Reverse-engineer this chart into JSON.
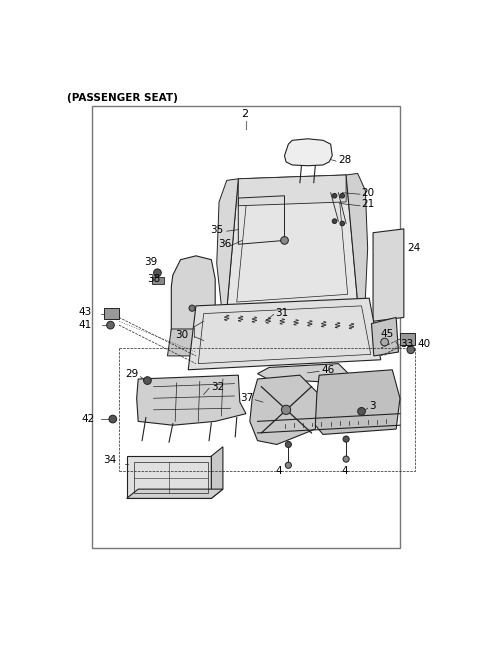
{
  "title": "(PASSENGER SEAT)",
  "bg_color": "#ffffff",
  "border_color": "#777777",
  "line_color": "#222222",
  "gray_fill": "#d8d8d8",
  "light_fill": "#eeeeee",
  "dark_fill": "#aaaaaa",
  "fig_w": 4.8,
  "fig_h": 6.56,
  "dpi": 100
}
